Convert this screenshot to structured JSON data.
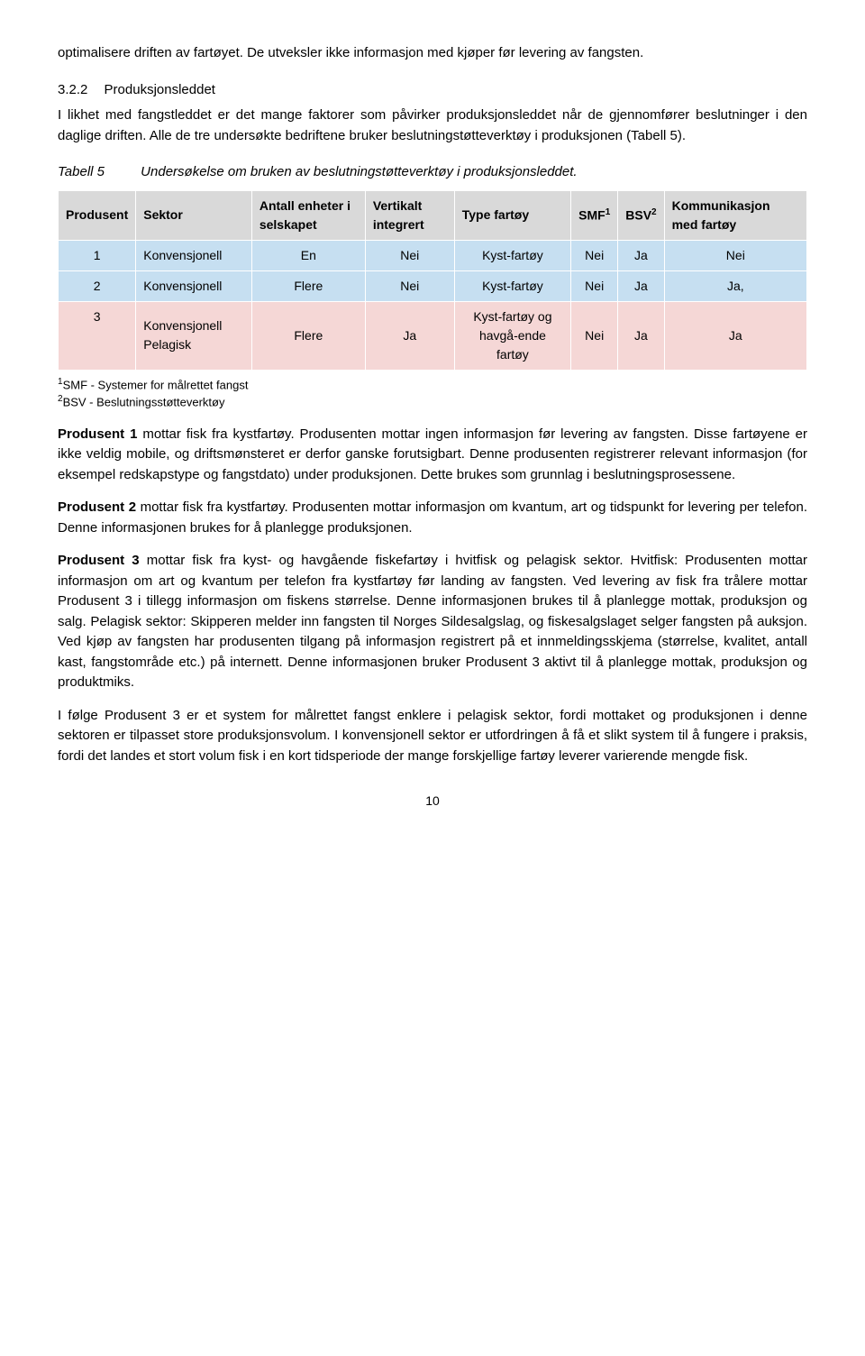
{
  "intro": "optimalisere driften av fartøyet. De utveksler ikke informasjon med kjøper før levering av fangsten.",
  "section": {
    "num": "3.2.2",
    "title": "Produksjonsleddet"
  },
  "section_text": "I likhet med fangstleddet er det mange faktorer som påvirker produksjonsleddet når de gjennomfører beslutninger i den daglige driften. Alle de tre undersøkte bedriftene bruker beslutningstøtteverktøy i produksjonen (Tabell 5).",
  "table_caption": {
    "label": "Tabell 5",
    "text": "Undersøkelse om bruken av beslutningstøtteverktøy i produksjonsleddet."
  },
  "table": {
    "headers": [
      "Produsent",
      "Sektor",
      "Antall enheter i selskapet",
      "Vertikalt integrert",
      "Type fartøy",
      "SMF",
      "BSV",
      "Kommunikasjon med fartøy"
    ],
    "sup1": "1",
    "sup2": "2",
    "rows": [
      {
        "color": "blue",
        "c": [
          "1",
          "Konvensjonell",
          "En",
          "Nei",
          "Kyst-fartøy",
          "Nei",
          "Ja",
          "Nei"
        ]
      },
      {
        "color": "blue",
        "c": [
          "2",
          "Konvensjonell",
          "Flere",
          "Nei",
          "Kyst-fartøy",
          "Nei",
          "Ja",
          "Ja,"
        ]
      },
      {
        "color": "pink",
        "c": [
          "3",
          "Konvensjonell Pelagisk",
          "Flere",
          "Ja",
          "Kyst-fartøy og havgå-ende fartøy",
          "Nei",
          "Ja",
          "Ja"
        ]
      }
    ]
  },
  "footnotes": {
    "f1": {
      "sup": "1",
      "text": "SMF - Systemer for målrettet fangst"
    },
    "f2": {
      "sup": "2",
      "text": "BSV - Beslutningsstøtteverktøy"
    }
  },
  "p1": {
    "lead": "Produsent 1",
    "rest": " mottar fisk fra kystfartøy. Produsenten mottar ingen informasjon før levering av fangsten. Disse fartøyene er ikke veldig mobile, og driftsmønsteret er derfor ganske forutsigbart. Denne produsenten registrerer relevant informasjon (for eksempel redskapstype og fangstdato) under produksjonen. Dette brukes som grunnlag i beslutningsprosessene."
  },
  "p2": {
    "lead": "Produsent 2",
    "rest": " mottar fisk fra kystfartøy. Produsenten mottar informasjon om kvantum, art og tidspunkt for levering per telefon. Denne informasjonen brukes for å planlegge produksjonen."
  },
  "p3": {
    "lead": "Produsent 3",
    "rest": " mottar fisk fra kyst- og havgående fiskefartøy i hvitfisk og pelagisk sektor. Hvitfisk: Produsenten mottar informasjon om art og kvantum per telefon fra kystfartøy før landing av fangsten. Ved levering av fisk fra trålere mottar Produsent 3 i tillegg informasjon om fiskens størrelse. Denne informasjonen brukes til å planlegge mottak, produksjon og salg. Pelagisk sektor: Skipperen melder inn fangsten til Norges Sildesalgslag, og fiskesalgslaget selger fangsten på auksjon. Ved kjøp av fangsten har produsenten tilgang på informasjon registrert på et innmeldingsskjema (størrelse, kvalitet, antall kast, fangstområde etc.) på internett. Denne informasjonen bruker Produsent 3 aktivt til å planlegge mottak, produksjon og produktmiks."
  },
  "p4": "I følge Produsent 3 er et system for målrettet fangst enklere i pelagisk sektor, fordi mottaket og produksjonen i denne sektoren er tilpasset store produksjonsvolum. I konvensjonell sektor er utfordringen å få et slikt system til å fungere i praksis, fordi det landes et stort volum fisk i en kort tidsperiode der mange forskjellige fartøy leverer varierende mengde fisk.",
  "page_number": "10"
}
